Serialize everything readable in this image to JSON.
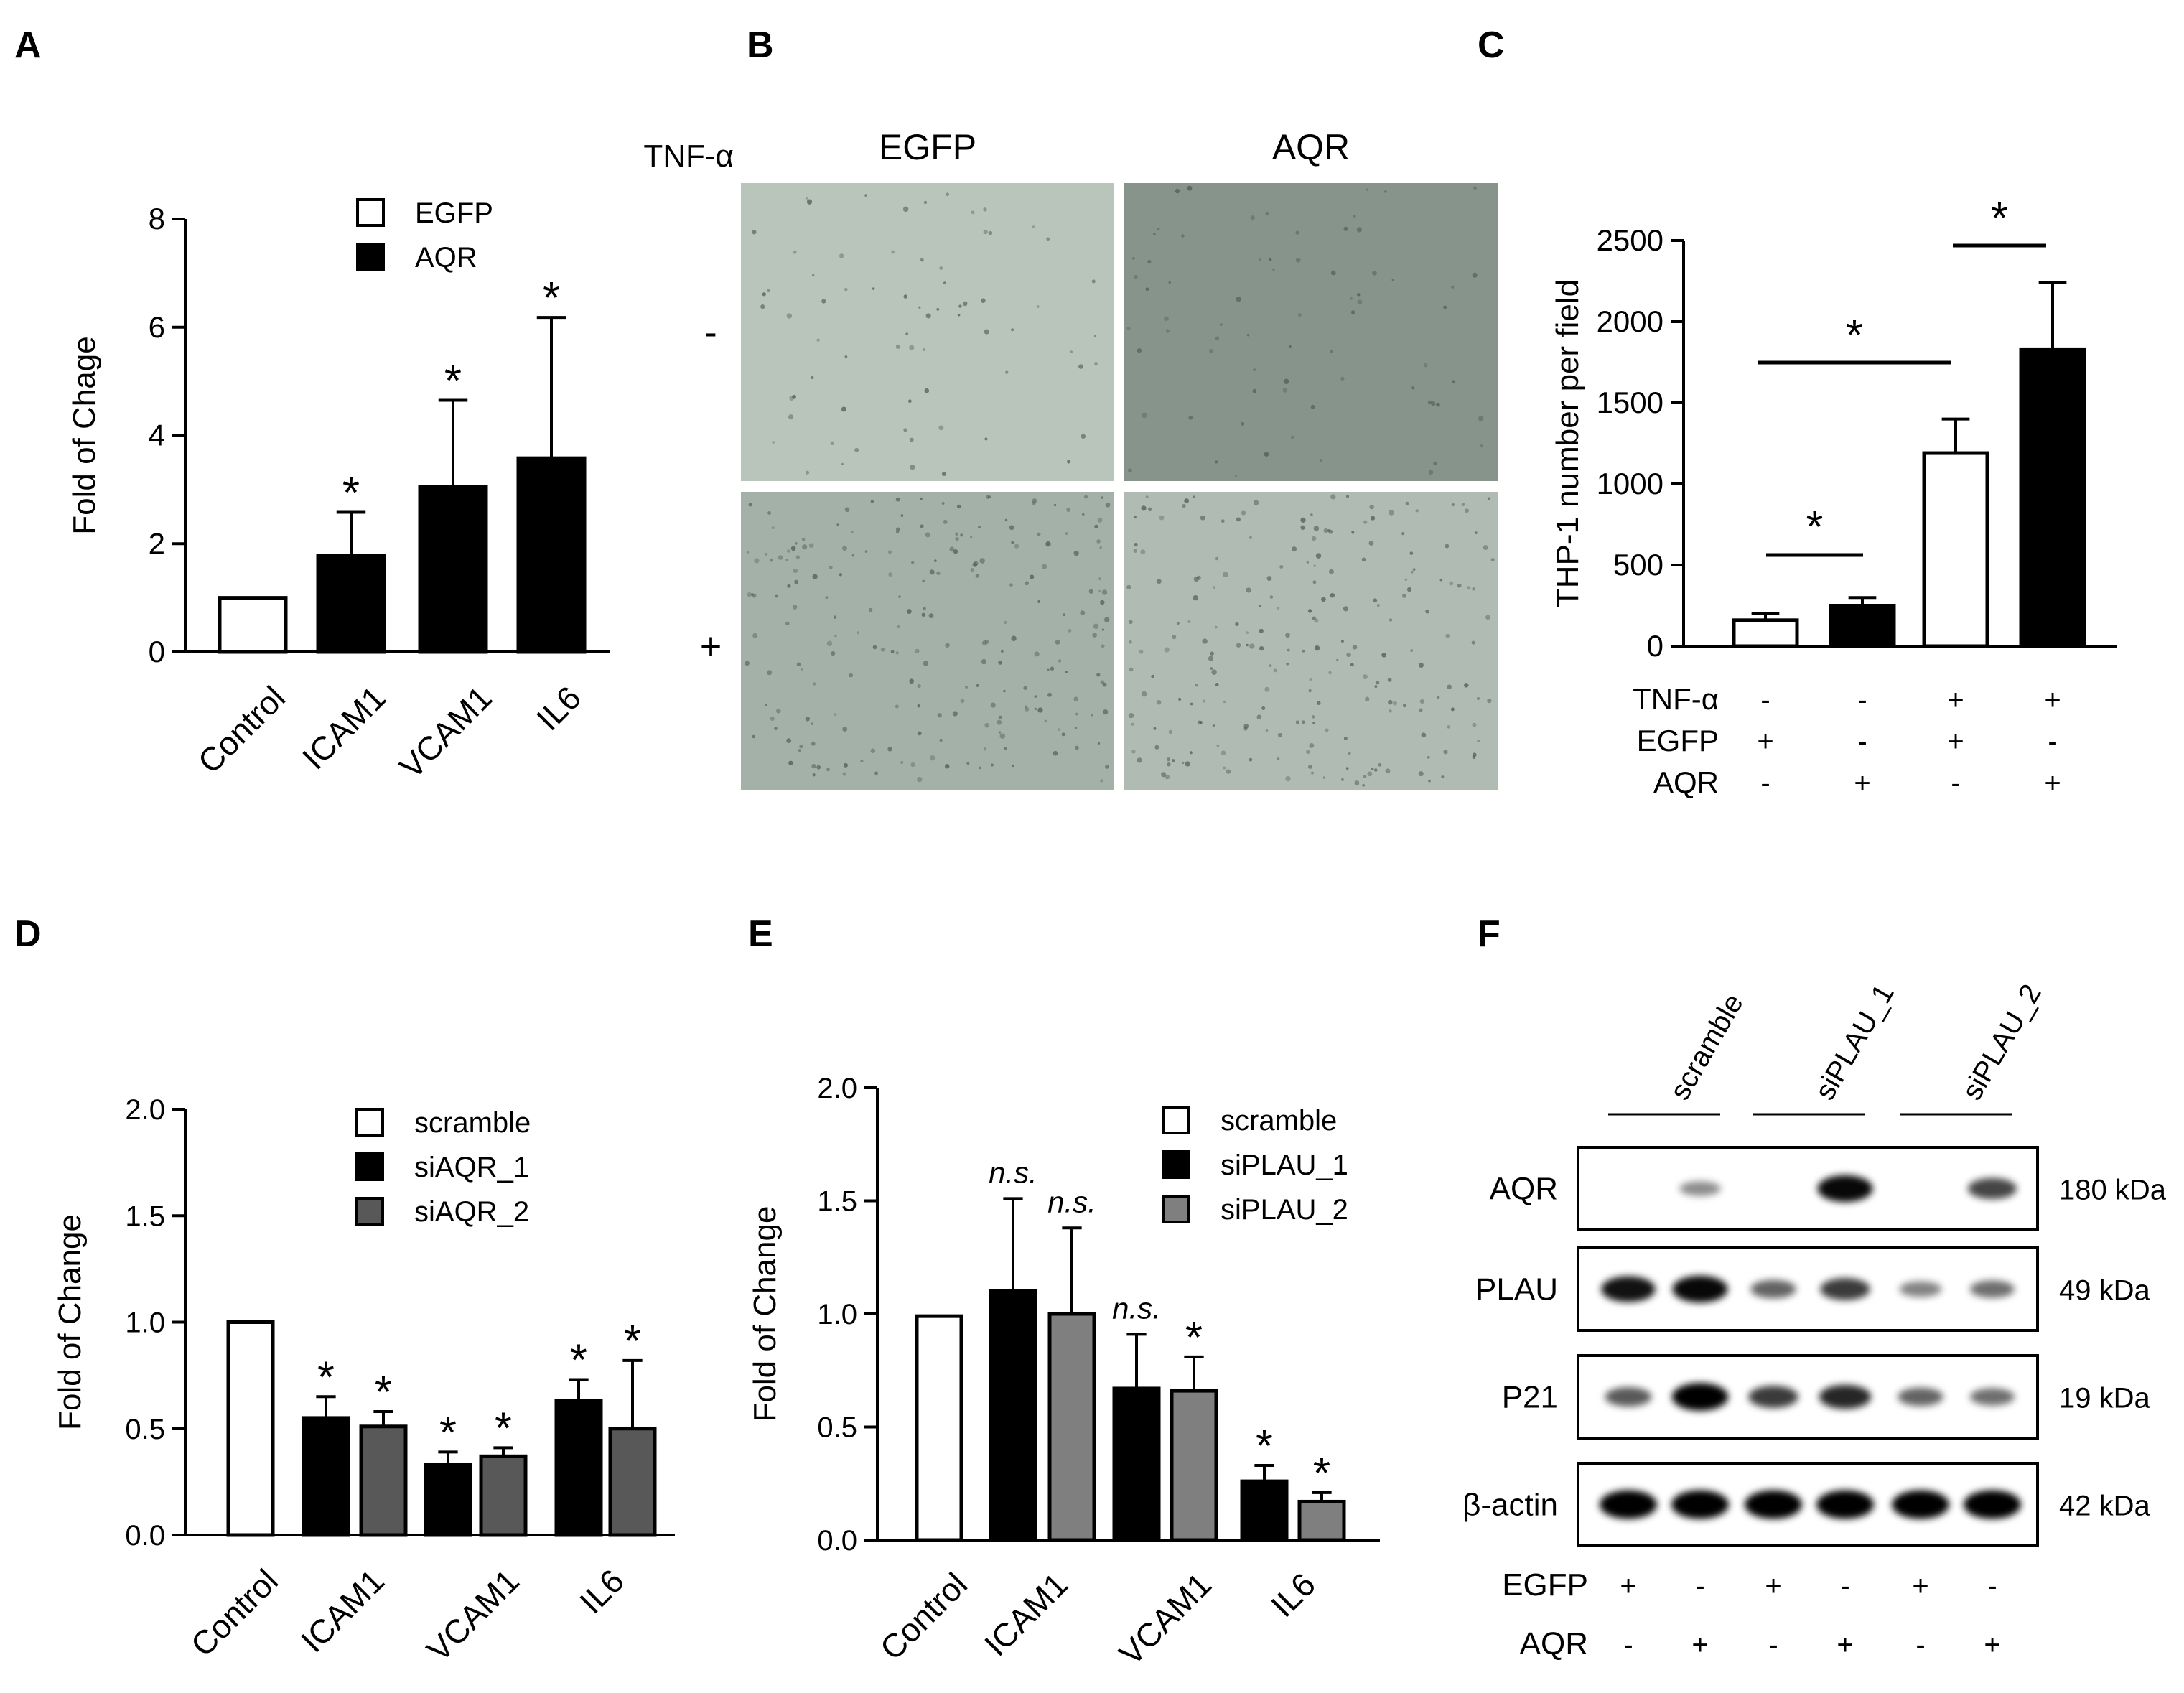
{
  "panel_letters": [
    "A",
    "B",
    "C",
    "D",
    "E",
    "F"
  ],
  "colors": {
    "open": "#ffffff",
    "black": "#000000",
    "dark_gray": "#585858",
    "mid_gray": "#7f7f7f"
  },
  "chart_data": [
    {
      "panel": "A",
      "type": "bar",
      "ylabel": "Fold of Chage",
      "ylim": [
        0,
        8
      ],
      "yticks": [
        0,
        2,
        4,
        6,
        8
      ],
      "categories": [
        "Control",
        "ICAM1",
        "VCAM1",
        "IL6"
      ],
      "legend": [
        {
          "name": "EGFP",
          "fill": "open"
        },
        {
          "name": "AQR",
          "fill": "black"
        }
      ],
      "legend_position": "top",
      "bars": [
        {
          "category": "Control",
          "value": 1.0,
          "error": 0,
          "fill": "open",
          "sig": ""
        },
        {
          "category": "ICAM1",
          "value": 1.78,
          "error": 0.8,
          "fill": "black",
          "sig": "*"
        },
        {
          "category": "VCAM1",
          "value": 3.05,
          "error": 1.6,
          "fill": "black",
          "sig": "*"
        },
        {
          "category": "IL6",
          "value": 3.58,
          "error": 2.6,
          "fill": "black",
          "sig": "*"
        }
      ]
    },
    {
      "panel": "C",
      "type": "bar",
      "ylabel": "THP-1 number per field",
      "ylim": [
        0,
        2500
      ],
      "yticks": [
        0,
        500,
        1000,
        1500,
        2000,
        2500
      ],
      "bars": [
        {
          "value": 160,
          "error": 40,
          "fill": "open"
        },
        {
          "value": 250,
          "error": 50,
          "fill": "black"
        },
        {
          "value": 1190,
          "error": 210,
          "fill": "open"
        },
        {
          "value": 1830,
          "error": 410,
          "fill": "black"
        }
      ],
      "condition_table": {
        "rows": [
          {
            "label": "TNF-α",
            "values": [
              "-",
              "-",
              "+",
              "+"
            ]
          },
          {
            "label": "EGFP",
            "values": [
              "+",
              "-",
              "+",
              "-"
            ]
          },
          {
            "label": "AQR",
            "values": [
              "-",
              "+",
              "-",
              "+"
            ]
          }
        ]
      },
      "significance": [
        {
          "from": 0,
          "to": 1,
          "label": "*"
        },
        {
          "from": 0,
          "to": 2,
          "label": "*"
        },
        {
          "from": 2,
          "to": 3,
          "label": "*"
        }
      ]
    },
    {
      "panel": "D",
      "type": "bar",
      "ylabel": "Fold of Change",
      "ylim": [
        0,
        2
      ],
      "yticks": [
        "0.0",
        "0.5",
        "1.0",
        "1.5",
        "2.0"
      ],
      "categories": [
        "Control",
        "ICAM1",
        "VCAM1",
        "IL6"
      ],
      "legend": [
        {
          "name": "scramble",
          "fill": "open"
        },
        {
          "name": "siAQR_1",
          "fill": "black"
        },
        {
          "name": "siAQR_2",
          "fill": "dark_gray"
        }
      ],
      "legend_position": "top-right",
      "bars": [
        {
          "category": "Control",
          "value": 1.0,
          "error": 0,
          "fill": "open",
          "sig": ""
        },
        {
          "category": "ICAM1",
          "value": 0.55,
          "error": 0.1,
          "fill": "black",
          "sig": "*"
        },
        {
          "category": "ICAM1",
          "value": 0.51,
          "error": 0.07,
          "fill": "dark_gray",
          "sig": "*"
        },
        {
          "category": "VCAM1",
          "value": 0.33,
          "error": 0.06,
          "fill": "black",
          "sig": "*"
        },
        {
          "category": "VCAM1",
          "value": 0.37,
          "error": 0.04,
          "fill": "dark_gray",
          "sig": "*"
        },
        {
          "category": "IL6",
          "value": 0.63,
          "error": 0.1,
          "fill": "black",
          "sig": "*"
        },
        {
          "category": "IL6",
          "value": 0.5,
          "error": 0.32,
          "fill": "dark_gray",
          "sig": "*"
        }
      ]
    },
    {
      "panel": "E",
      "type": "bar",
      "ylabel": "Fold of Change",
      "ylim": [
        0,
        2
      ],
      "yticks": [
        "0.0",
        "0.5",
        "1.0",
        "1.5",
        "2.0"
      ],
      "categories": [
        "Control",
        "ICAM1",
        "VCAM1",
        "IL6"
      ],
      "legend": [
        {
          "name": "scramble",
          "fill": "open"
        },
        {
          "name": "siPLAU_1",
          "fill": "black"
        },
        {
          "name": "siPLAU_2",
          "fill": "mid_gray"
        }
      ],
      "legend_position": "top-right",
      "bars": [
        {
          "category": "Control",
          "value": 0.99,
          "error": 0,
          "fill": "open",
          "sig": ""
        },
        {
          "category": "ICAM1",
          "value": 1.1,
          "error": 0.41,
          "fill": "black",
          "sig": "n.s."
        },
        {
          "category": "ICAM1",
          "value": 1.0,
          "error": 0.38,
          "fill": "mid_gray",
          "sig": "n.s."
        },
        {
          "category": "VCAM1",
          "value": 0.67,
          "error": 0.24,
          "fill": "black",
          "sig": "n.s."
        },
        {
          "category": "VCAM1",
          "value": 0.66,
          "error": 0.15,
          "fill": "mid_gray",
          "sig": "*"
        },
        {
          "category": "IL6",
          "value": 0.26,
          "error": 0.07,
          "fill": "black",
          "sig": "*"
        },
        {
          "category": "IL6",
          "value": 0.17,
          "error": 0.04,
          "fill": "mid_gray",
          "sig": "*"
        }
      ]
    }
  ],
  "panel_b": {
    "treatment_label": "TNF-α",
    "columns": [
      "EGFP",
      "AQR"
    ],
    "rows": [
      "-",
      "+"
    ],
    "images": [
      {
        "row": "-",
        "column": "EGFP",
        "tone": "#b9c5bb"
      },
      {
        "row": "-",
        "column": "AQR",
        "tone": "#86948c"
      },
      {
        "row": "+",
        "column": "EGFP",
        "tone": "#a4b1a8"
      },
      {
        "row": "+",
        "column": "AQR",
        "tone": "#b0bcb3"
      }
    ]
  },
  "panel_f": {
    "groups": [
      "scramble",
      "siPLAU_1",
      "siPLAU_2"
    ],
    "bands": [
      {
        "protein": "AQR",
        "size": "180 kDa",
        "intensity": [
          0,
          0.25,
          0,
          0.9,
          0,
          0.6
        ]
      },
      {
        "protein": "PLAU",
        "size": "49 kDa",
        "intensity": [
          0.85,
          0.9,
          0.45,
          0.65,
          0.3,
          0.4
        ]
      },
      {
        "protein": "P21",
        "size": "19 kDa",
        "intensity": [
          0.5,
          0.95,
          0.65,
          0.75,
          0.45,
          0.4
        ]
      },
      {
        "protein": "β-actin",
        "size": "42 kDa",
        "intensity": [
          1,
          1,
          1,
          1,
          1,
          1
        ]
      }
    ],
    "conditions": [
      {
        "label": "EGFP",
        "values": [
          "+",
          "-",
          "+",
          "-",
          "+",
          "-"
        ]
      },
      {
        "label": "AQR",
        "values": [
          "-",
          "+",
          "-",
          "+",
          "-",
          "+"
        ]
      }
    ]
  }
}
